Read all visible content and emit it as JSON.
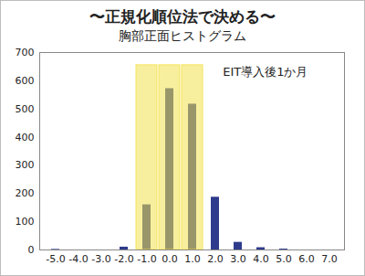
{
  "chart_data": {
    "type": "bar",
    "title": "〜正規化順位法で決める〜",
    "subtitle": "胸部正面ヒストグラム",
    "annotation": "EIT導入後1か月",
    "categories": [
      "-5.0",
      "-4.0",
      "-3.0",
      "-2.0",
      "-1.0",
      "0.0",
      "1.0",
      "2.0",
      "3.0",
      "4.0",
      "5.0",
      "6.0",
      "7.0"
    ],
    "values": [
      2,
      0,
      0,
      10,
      160,
      572,
      517,
      187,
      27,
      8,
      3,
      0,
      0
    ],
    "color": "#2e3b8c",
    "highlight": {
      "categories": [
        "-1.0",
        "0.0",
        "1.0"
      ],
      "top": 655,
      "color": "#f3e24f"
    },
    "ylim": [
      0,
      700
    ],
    "yticks": [
      0,
      100,
      200,
      300,
      400,
      500,
      600,
      700
    ],
    "grid": false
  }
}
